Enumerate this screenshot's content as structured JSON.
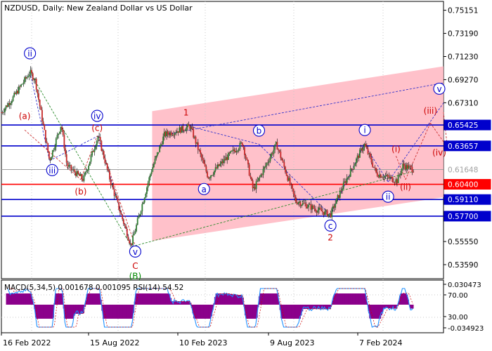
{
  "chart_data": {
    "type": "candlestick",
    "title": "NZDUSD, Daily:  New Zealand Dollar vs US Dollar",
    "price_axis": {
      "range": [
        0.524,
        0.759
      ],
      "ticks": [
        "0.75151",
        "0.73190",
        "0.71230",
        "0.69270",
        "0.67310",
        "0.63657",
        "0.61648",
        "0.59110",
        "0.57700",
        "0.55550",
        "0.53590"
      ]
    },
    "time_axis": {
      "labels": [
        "16 Feb 2022",
        "15 Aug 2022",
        "10 Feb 2023",
        "9 Aug 2023",
        "7 Feb 2024"
      ],
      "date_range": [
        "2022-02-10",
        "2024-04-05"
      ]
    },
    "price_path": [
      [
        "2022-02-10",
        0.665
      ],
      [
        "2022-03-05",
        0.678
      ],
      [
        "2022-04-05",
        0.699
      ],
      [
        "2022-04-15",
        0.692
      ],
      [
        "2022-05-12",
        0.624
      ],
      [
        "2022-06-03",
        0.655
      ],
      [
        "2022-06-14",
        0.62
      ],
      [
        "2022-07-15",
        0.608
      ],
      [
        "2022-08-12",
        0.645
      ],
      [
        "2022-09-05",
        0.605
      ],
      [
        "2022-10-13",
        0.552
      ],
      [
        "2022-11-20",
        0.615
      ],
      [
        "2022-12-15",
        0.646
      ],
      [
        "2023-02-02",
        0.653
      ],
      [
        "2023-03-08",
        0.61
      ],
      [
        "2023-04-15",
        0.628
      ],
      [
        "2023-05-12",
        0.639
      ],
      [
        "2023-06-01",
        0.599
      ],
      [
        "2023-07-15",
        0.638
      ],
      [
        "2023-08-20",
        0.59
      ],
      [
        "2023-10-25",
        0.578
      ],
      [
        "2023-11-15",
        0.6
      ],
      [
        "2023-12-28",
        0.638
      ],
      [
        "2024-01-20",
        0.613
      ],
      [
        "2024-02-10",
        0.61
      ],
      [
        "2024-02-28",
        0.607
      ],
      [
        "2024-03-10",
        0.62
      ],
      [
        "2024-03-31",
        0.6165
      ]
    ],
    "levels": [
      {
        "label": "0.65425",
        "value": 0.65425,
        "color": "#0000cc"
      },
      {
        "label": "0.63657",
        "value": 0.63657,
        "color": "#0000cc"
      },
      {
        "label": "0.61648",
        "value": 0.61648,
        "color": "#a0a0a0"
      },
      {
        "label": "0.60400",
        "value": 0.604,
        "color": "#ff0000"
      },
      {
        "label": "0.59110",
        "value": 0.5911,
        "color": "#0000cc"
      },
      {
        "label": "0.57700",
        "value": 0.577,
        "color": "#0000cc"
      }
    ],
    "wave_labels": [
      {
        "text": "ii",
        "date": "2022-04-05",
        "price": 0.715,
        "color": "#0000cc",
        "circled": true
      },
      {
        "text": "(a)",
        "date": "2022-03-26",
        "price": 0.662,
        "color": "#cc0000",
        "circled": false
      },
      {
        "text": "iv",
        "date": "2022-08-10",
        "price": 0.662,
        "color": "#0000cc",
        "circled": true
      },
      {
        "text": "(c)",
        "date": "2022-08-10",
        "price": 0.652,
        "color": "#cc0000",
        "circled": false
      },
      {
        "text": "iii",
        "date": "2022-05-17",
        "price": 0.616,
        "color": "#0000cc",
        "circled": true
      },
      {
        "text": "(b)",
        "date": "2022-07-10",
        "price": 0.598,
        "color": "#cc0000",
        "circled": false
      },
      {
        "text": "v",
        "date": "2022-10-21",
        "price": 0.547,
        "color": "#0000cc",
        "circled": true
      },
      {
        "text": "C",
        "date": "2022-10-21",
        "price": 0.535,
        "color": "#cc0000",
        "circled": false
      },
      {
        "text": "(B)",
        "date": "2022-10-21",
        "price": 0.5265,
        "color": "#008800",
        "circled": false
      },
      {
        "text": "1",
        "date": "2023-01-25",
        "price": 0.665,
        "color": "#cc0000",
        "circled": false
      },
      {
        "text": "a",
        "date": "2023-02-28",
        "price": 0.6,
        "color": "#0000cc",
        "circled": true
      },
      {
        "text": "b",
        "date": "2023-06-12",
        "price": 0.6495,
        "color": "#0000cc",
        "circled": true
      },
      {
        "text": "c",
        "date": "2023-10-25",
        "price": 0.569,
        "color": "#0000cc",
        "circled": true
      },
      {
        "text": "2",
        "date": "2023-10-25",
        "price": 0.559,
        "color": "#cc0000",
        "circled": false
      },
      {
        "text": "i",
        "date": "2023-12-29",
        "price": 0.65,
        "color": "#0000cc",
        "circled": true
      },
      {
        "text": "ii",
        "date": "2024-02-11",
        "price": 0.5935,
        "color": "#0000cc",
        "circled": true
      },
      {
        "text": "(i)",
        "date": "2024-02-26",
        "price": 0.634,
        "color": "#cc0000",
        "circled": false
      },
      {
        "text": "(ii)",
        "date": "2024-03-15",
        "price": 0.602,
        "color": "#cc0000",
        "circled": false
      },
      {
        "text": "(iii)",
        "date": "2024-05-01",
        "price": 0.6665,
        "color": "#cc0000",
        "circled": false
      },
      {
        "text": "(iv)",
        "date": "2024-06-01",
        "price": 0.631,
        "color": "#cc0000",
        "circled": false
      },
      {
        "text": "v",
        "date": "2024-07-04",
        "price": 0.685,
        "color": "#0000cc",
        "circled": true
      }
    ],
    "channel": {
      "color": "#ffb6c1",
      "top": [
        [
          "2022-11-22",
          0.666
        ],
        [
          "2024-07-25",
          0.704
        ]
      ],
      "bottom": [
        [
          "2022-11-22",
          0.556
        ],
        [
          "2024-07-25",
          0.593
        ]
      ]
    },
    "macd_panel": {
      "label": "MACD(5,34,5) 0.001678 0.001095 RSI(14) 54.52",
      "range": [
        -0.034923,
        0.030473
      ],
      "ticks": [
        "0.030473",
        "70.00",
        "30.00",
        "-0.034923"
      ]
    }
  }
}
